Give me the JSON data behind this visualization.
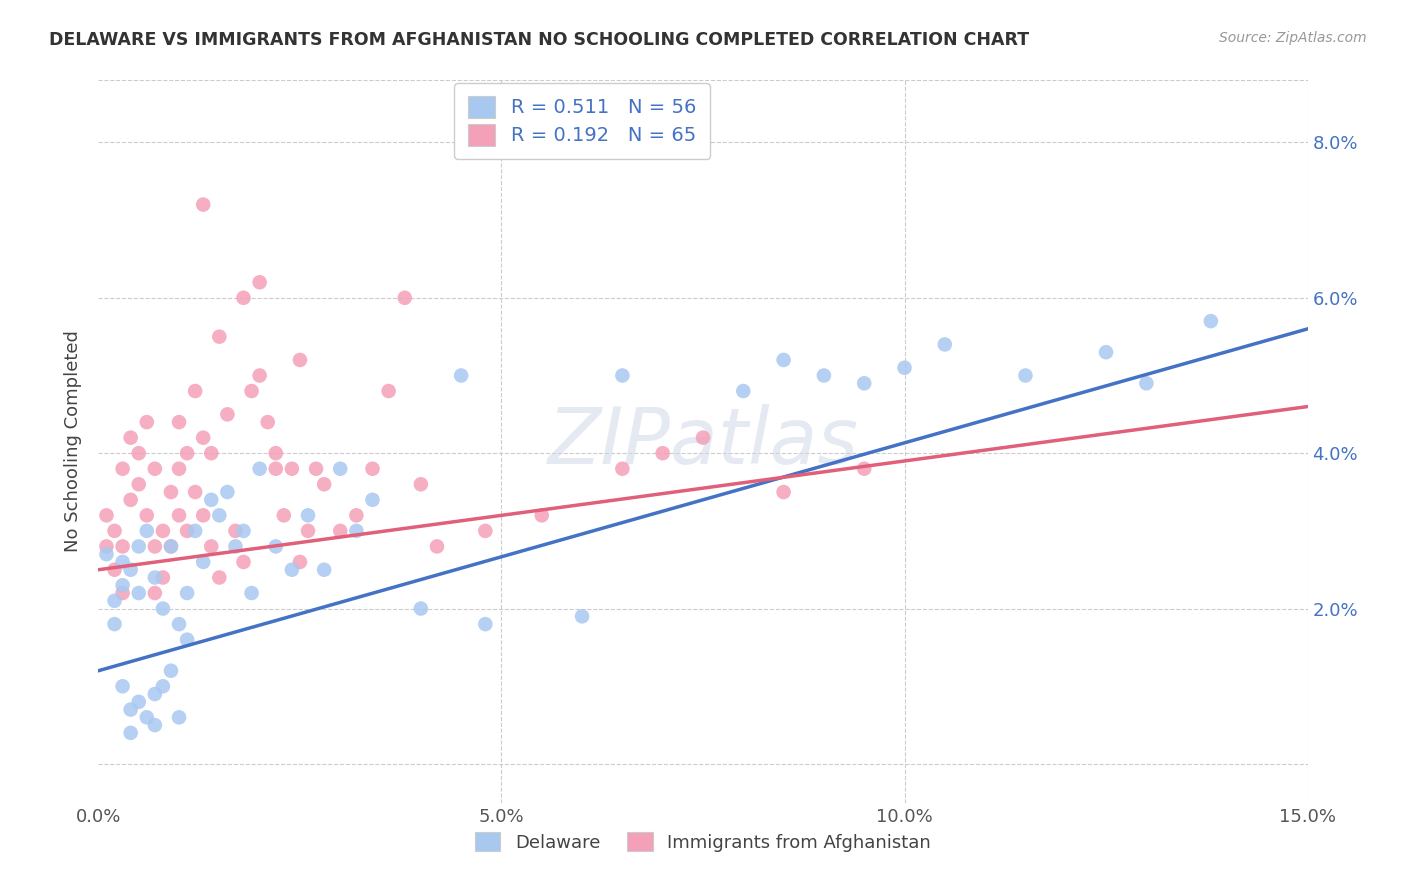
{
  "title": "DELAWARE VS IMMIGRANTS FROM AFGHANISTAN NO SCHOOLING COMPLETED CORRELATION CHART",
  "source": "Source: ZipAtlas.com",
  "ylabel": "No Schooling Completed",
  "xlim": [
    0.0,
    0.15
  ],
  "ylim": [
    -0.005,
    0.088
  ],
  "xticks": [
    0.0,
    0.05,
    0.1,
    0.15
  ],
  "xticklabels": [
    "0.0%",
    "5.0%",
    "10.0%",
    "15.0%"
  ],
  "yticks_right": [
    0.0,
    0.02,
    0.04,
    0.06,
    0.08
  ],
  "yticklabels_right": [
    "",
    "2.0%",
    "4.0%",
    "6.0%",
    "8.0%"
  ],
  "legend1_label": "R = 0.511   N = 56",
  "legend2_label": "R = 0.192   N = 65",
  "legend_bottom_label1": "Delaware",
  "legend_bottom_label2": "Immigrants from Afghanistan",
  "blue_color": "#a8c8f0",
  "pink_color": "#f4a0b8",
  "blue_line_color": "#4472c4",
  "pink_line_color": "#e0607a",
  "blue_scatter_x": [
    0.001,
    0.002,
    0.002,
    0.003,
    0.003,
    0.003,
    0.004,
    0.004,
    0.004,
    0.005,
    0.005,
    0.005,
    0.006,
    0.006,
    0.007,
    0.007,
    0.007,
    0.008,
    0.008,
    0.009,
    0.009,
    0.01,
    0.01,
    0.011,
    0.011,
    0.012,
    0.013,
    0.014,
    0.015,
    0.016,
    0.017,
    0.018,
    0.019,
    0.02,
    0.022,
    0.024,
    0.026,
    0.028,
    0.03,
    0.032,
    0.034,
    0.04,
    0.045,
    0.048,
    0.06,
    0.065,
    0.08,
    0.085,
    0.09,
    0.095,
    0.1,
    0.105,
    0.115,
    0.125,
    0.13,
    0.138
  ],
  "blue_scatter_y": [
    0.027,
    0.021,
    0.018,
    0.026,
    0.023,
    0.01,
    0.025,
    0.007,
    0.004,
    0.028,
    0.022,
    0.008,
    0.03,
    0.006,
    0.024,
    0.009,
    0.005,
    0.02,
    0.01,
    0.028,
    0.012,
    0.018,
    0.006,
    0.022,
    0.016,
    0.03,
    0.026,
    0.034,
    0.032,
    0.035,
    0.028,
    0.03,
    0.022,
    0.038,
    0.028,
    0.025,
    0.032,
    0.025,
    0.038,
    0.03,
    0.034,
    0.02,
    0.05,
    0.018,
    0.019,
    0.05,
    0.048,
    0.052,
    0.05,
    0.049,
    0.051,
    0.054,
    0.05,
    0.053,
    0.049,
    0.057
  ],
  "pink_scatter_x": [
    0.001,
    0.001,
    0.002,
    0.002,
    0.003,
    0.003,
    0.003,
    0.004,
    0.004,
    0.005,
    0.005,
    0.006,
    0.006,
    0.007,
    0.007,
    0.007,
    0.008,
    0.008,
    0.009,
    0.009,
    0.01,
    0.01,
    0.01,
    0.011,
    0.011,
    0.012,
    0.012,
    0.013,
    0.013,
    0.014,
    0.014,
    0.015,
    0.015,
    0.016,
    0.017,
    0.018,
    0.019,
    0.02,
    0.021,
    0.022,
    0.023,
    0.024,
    0.025,
    0.026,
    0.027,
    0.028,
    0.03,
    0.032,
    0.034,
    0.036,
    0.038,
    0.04,
    0.042,
    0.048,
    0.055,
    0.065,
    0.07,
    0.075,
    0.085,
    0.095,
    0.013,
    0.018,
    0.02,
    0.022,
    0.025
  ],
  "pink_scatter_y": [
    0.028,
    0.032,
    0.03,
    0.025,
    0.028,
    0.038,
    0.022,
    0.042,
    0.034,
    0.036,
    0.04,
    0.032,
    0.044,
    0.038,
    0.028,
    0.022,
    0.03,
    0.024,
    0.035,
    0.028,
    0.032,
    0.038,
    0.044,
    0.04,
    0.03,
    0.035,
    0.048,
    0.042,
    0.032,
    0.04,
    0.028,
    0.055,
    0.024,
    0.045,
    0.03,
    0.026,
    0.048,
    0.062,
    0.044,
    0.038,
    0.032,
    0.038,
    0.026,
    0.03,
    0.038,
    0.036,
    0.03,
    0.032,
    0.038,
    0.048,
    0.06,
    0.036,
    0.028,
    0.03,
    0.032,
    0.038,
    0.04,
    0.042,
    0.035,
    0.038,
    0.072,
    0.06,
    0.05,
    0.04,
    0.052
  ],
  "blue_line_x0": 0.0,
  "blue_line_x1": 0.15,
  "blue_line_y0": 0.012,
  "blue_line_y1": 0.056,
  "pink_line_x0": 0.0,
  "pink_line_x1": 0.15,
  "pink_line_y0": 0.025,
  "pink_line_y1": 0.046
}
